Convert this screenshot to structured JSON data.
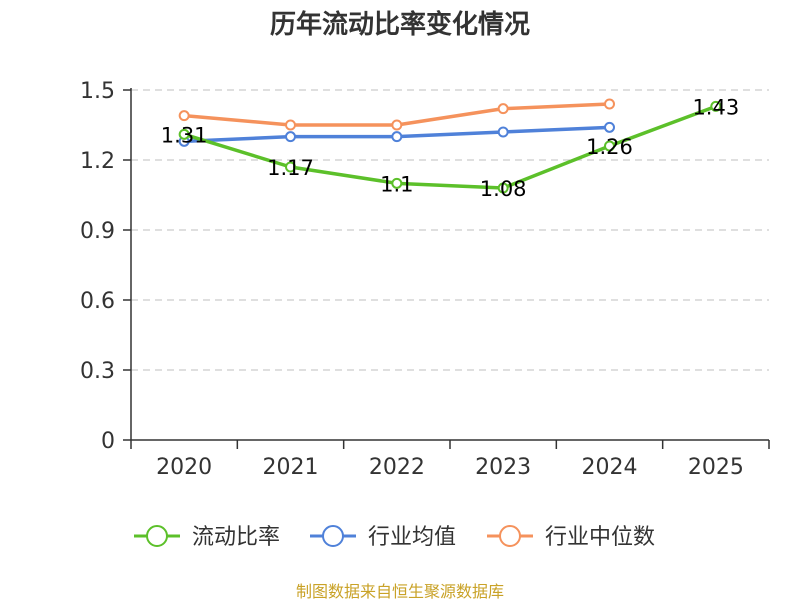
{
  "chart_data": {
    "type": "line",
    "title": "历年流动比率变化情况",
    "categories": [
      "2020",
      "2021",
      "2022",
      "2023",
      "2024",
      "2025"
    ],
    "ylim": [
      0,
      1.5
    ],
    "yticks": [
      "0",
      "0.3",
      "0.6",
      "0.9",
      "1.2",
      "1.5"
    ],
    "grid": true,
    "legend_position": "bottom",
    "series": [
      {
        "name": "流动比率",
        "color": "#5cc02a",
        "values": [
          1.31,
          1.17,
          1.1,
          1.08,
          1.26,
          1.43
        ],
        "labels": [
          "1.31",
          "1.17",
          "1.1",
          "1.08",
          "1.26",
          "1.43"
        ]
      },
      {
        "name": "行业均值",
        "color": "#4f81d9",
        "values": [
          1.28,
          1.3,
          1.3,
          1.32,
          1.34,
          null
        ]
      },
      {
        "name": "行业中位数",
        "color": "#f5925c",
        "values": [
          1.39,
          1.35,
          1.35,
          1.42,
          1.44,
          null
        ]
      }
    ]
  },
  "source": "制图数据来自恒生聚源数据库"
}
